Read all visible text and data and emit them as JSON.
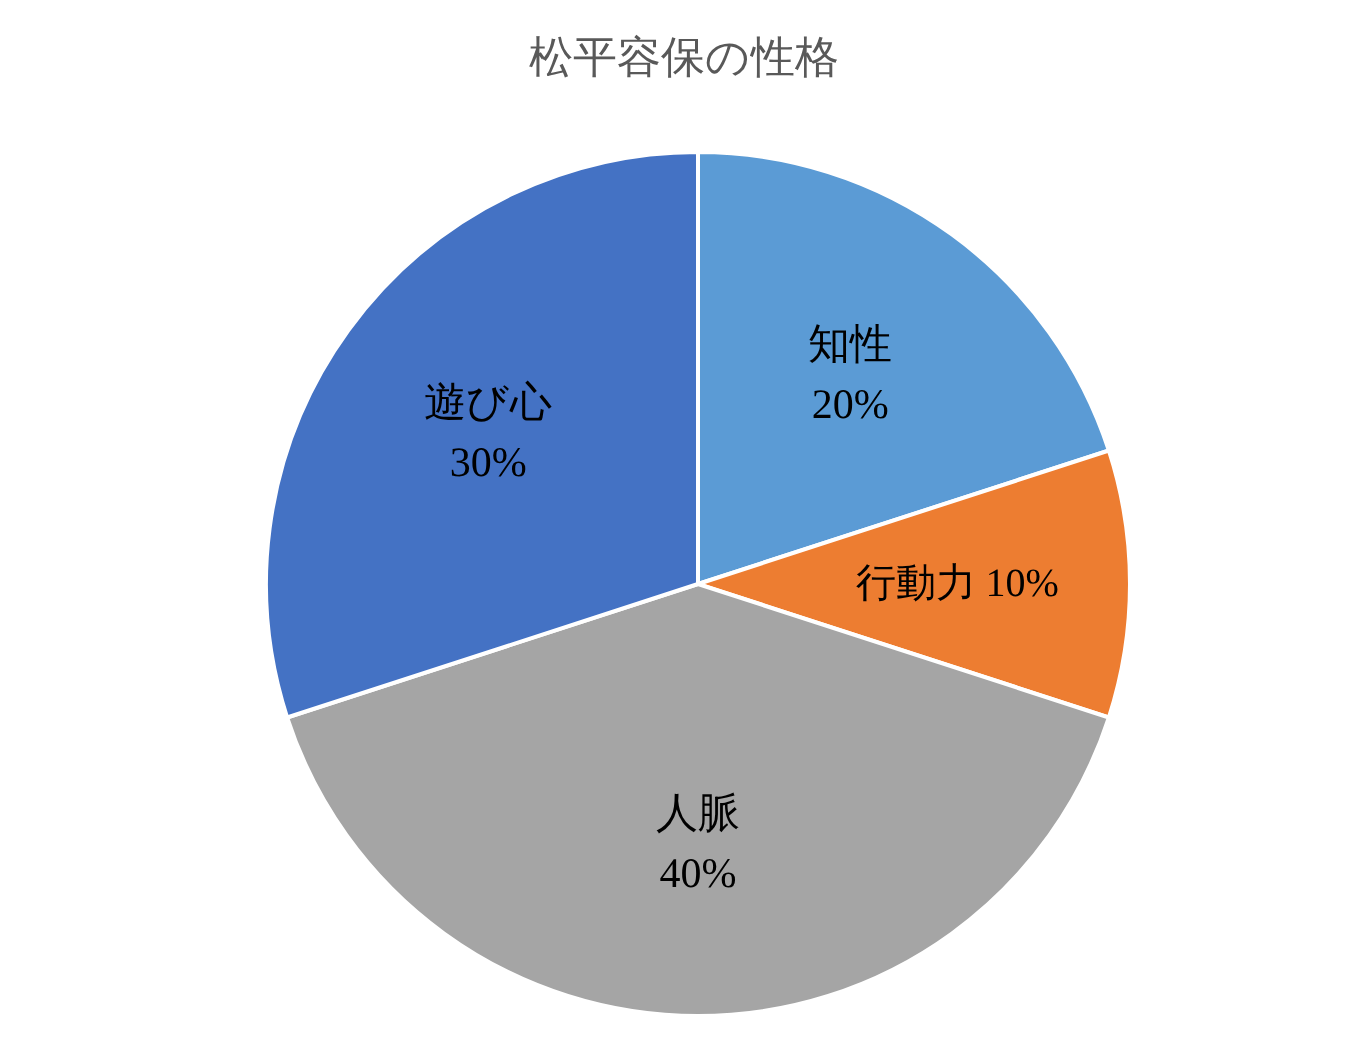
{
  "chart_data": {
    "type": "pie",
    "title": "松平容保の性格",
    "categories": [
      "知性",
      "行動力",
      "人脈",
      "遊び心"
    ],
    "values": [
      20,
      10,
      40,
      30
    ],
    "value_labels": [
      "20%",
      "10%",
      "40%",
      "30%"
    ],
    "colors": [
      "#5b9bd5",
      "#ed7d31",
      "#a5a5a5",
      "#4472c4"
    ],
    "legend": false
  }
}
